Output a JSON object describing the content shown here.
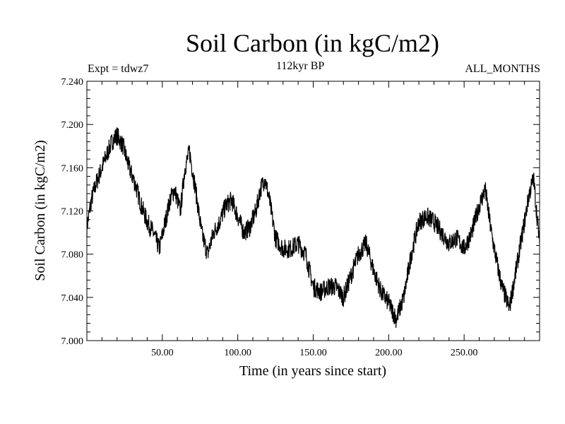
{
  "chart_data": {
    "type": "line",
    "title": "Soil Carbon (in kgC/m2)",
    "subtitle": "112kyr BP",
    "annotation_left": "Expt = tdwz7",
    "annotation_right": "ALL_MONTHS",
    "xlabel": "Time (in years since start)",
    "ylabel": "Soil Carbon (in kgC/m2)",
    "xlim": [
      0,
      300
    ],
    "ylim": [
      7.0,
      7.24
    ],
    "x_ticks": [
      50,
      100,
      150,
      200,
      250
    ],
    "x_tick_labels": [
      "50.00",
      "100.00",
      "150.00",
      "200.00",
      "250.00"
    ],
    "y_ticks": [
      7.0,
      7.04,
      7.08,
      7.12,
      7.16,
      7.2,
      7.24
    ],
    "y_tick_labels": [
      "7.000",
      "7.040",
      "7.080",
      "7.120",
      "7.160",
      "7.200",
      "7.240"
    ],
    "grid": false,
    "series": [
      {
        "name": "Soil Carbon",
        "x": [
          0,
          3,
          6,
          10,
          14,
          17,
          20,
          24,
          28,
          32,
          36,
          40,
          44,
          48,
          52,
          55,
          58,
          62,
          65,
          68,
          72,
          76,
          80,
          84,
          88,
          92,
          96,
          100,
          104,
          108,
          112,
          115,
          118,
          121,
          125,
          130,
          135,
          140,
          145,
          150,
          155,
          160,
          165,
          170,
          175,
          180,
          185,
          190,
          195,
          200,
          205,
          210,
          215,
          220,
          225,
          230,
          235,
          240,
          245,
          250,
          255,
          260,
          264,
          268,
          272,
          275,
          280,
          285,
          290,
          293,
          296,
          300
        ],
        "y": [
          7.105,
          7.13,
          7.145,
          7.16,
          7.175,
          7.185,
          7.19,
          7.18,
          7.16,
          7.145,
          7.125,
          7.11,
          7.1,
          7.085,
          7.11,
          7.13,
          7.14,
          7.12,
          7.16,
          7.175,
          7.14,
          7.1,
          7.08,
          7.1,
          7.11,
          7.125,
          7.13,
          7.115,
          7.1,
          7.105,
          7.12,
          7.14,
          7.15,
          7.13,
          7.095,
          7.085,
          7.085,
          7.09,
          7.08,
          7.05,
          7.045,
          7.05,
          7.05,
          7.04,
          7.06,
          7.08,
          7.09,
          7.065,
          7.045,
          7.035,
          7.02,
          7.04,
          7.08,
          7.11,
          7.115,
          7.11,
          7.1,
          7.09,
          7.095,
          7.085,
          7.1,
          7.125,
          7.14,
          7.1,
          7.07,
          7.05,
          7.03,
          7.07,
          7.11,
          7.135,
          7.15,
          7.09
        ]
      }
    ]
  }
}
